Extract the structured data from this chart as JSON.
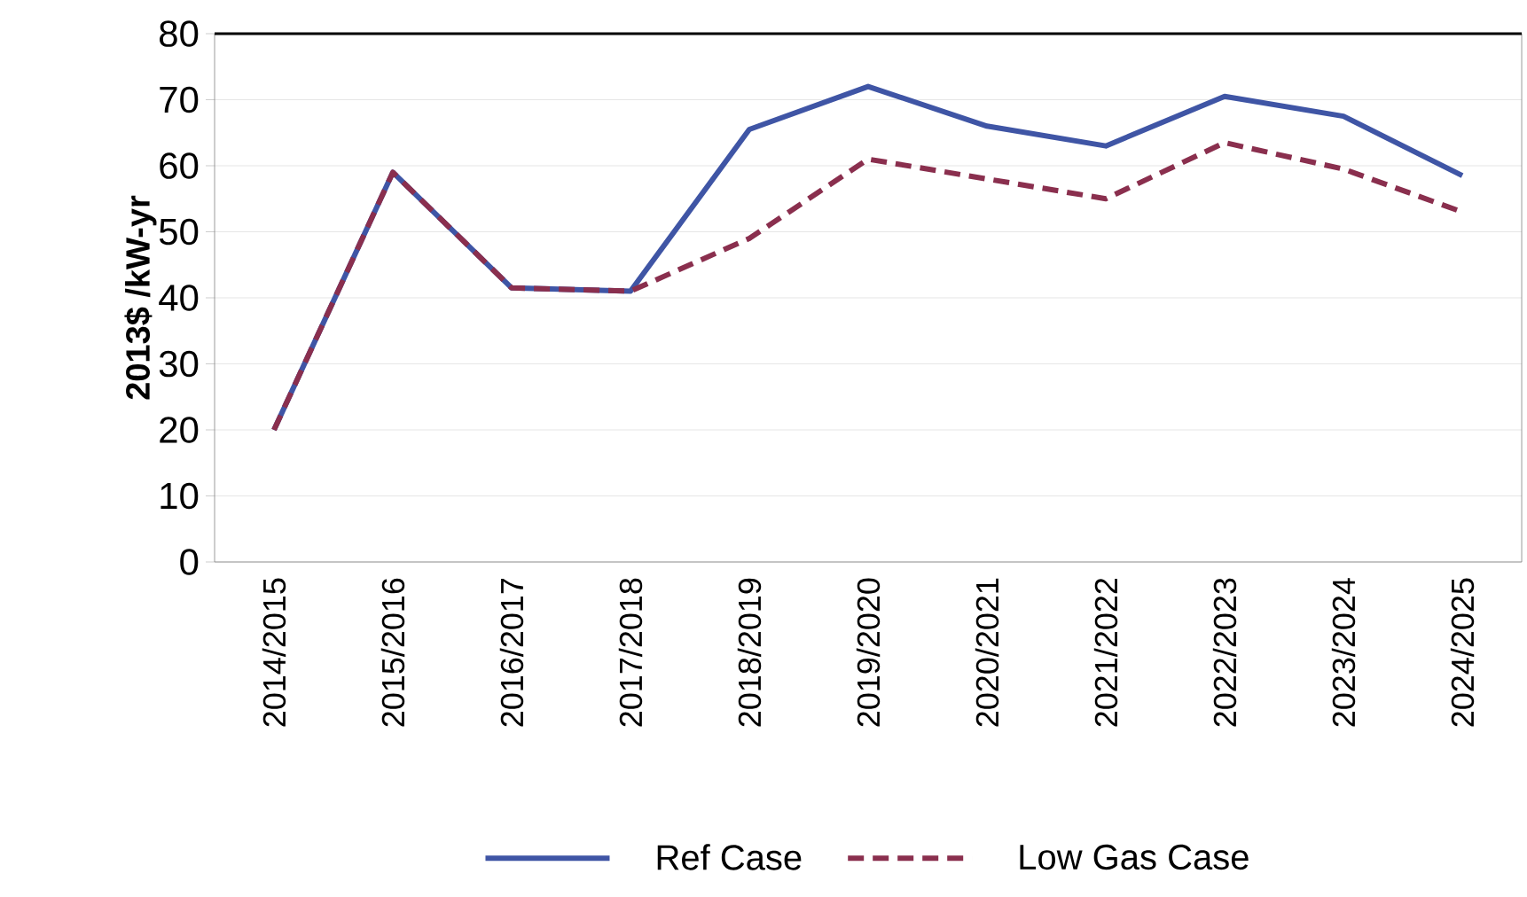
{
  "chart_data": {
    "type": "line",
    "ylabel": "2013$ /kW-yr",
    "categories": [
      "2014/2015",
      "2015/2016",
      "2016/2017",
      "2017/2018",
      "2018/2019",
      "2019/2020",
      "2020/2021",
      "2021/2022",
      "2022/2023",
      "2023/2024",
      "2024/2025"
    ],
    "series": [
      {
        "name": "Ref Case",
        "color": "#3f55a5",
        "line_style": "solid",
        "values": [
          20,
          59,
          41.5,
          41,
          65.5,
          72,
          66,
          63,
          70.5,
          67.5,
          58.5
        ]
      },
      {
        "name": "Low Gas Case",
        "color": "#8a2f4e",
        "line_style": "dashed",
        "values": [
          20,
          59,
          41.5,
          41,
          49,
          61,
          58,
          55,
          63.5,
          59.5,
          53
        ]
      }
    ],
    "ylim": [
      0,
      80
    ],
    "yticks": [
      0,
      10,
      20,
      30,
      40,
      50,
      60,
      70,
      80
    ],
    "grid": "y",
    "legend": "bottom",
    "marker": "none"
  }
}
